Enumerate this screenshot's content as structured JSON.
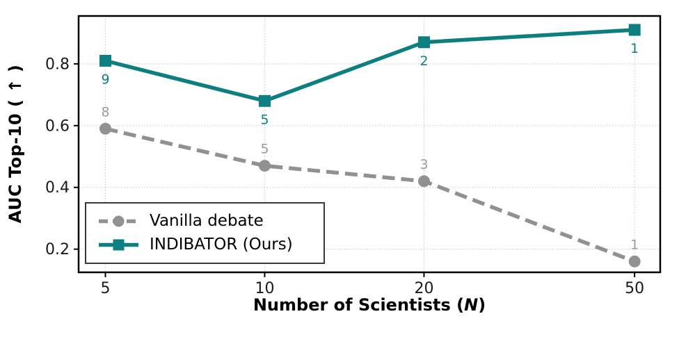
{
  "figure": {
    "background": "#ffffff",
    "frame_color": "#000000",
    "grid_color": "#cccccc",
    "tick_label_color": "#1a1a1a"
  },
  "chart_data": {
    "type": "line",
    "xscale": "log",
    "grid": "dotted",
    "legend_position": "lower-left",
    "ylabel": "AUC Top-10 ( ↑ )",
    "xlabel_prefix": "Number of Scientists (",
    "xlabel_var": "N",
    "xlabel_suffix": ")",
    "x": [
      5,
      10,
      20,
      50
    ],
    "xtick_labels": [
      "5",
      "10",
      "20",
      "50"
    ],
    "yticks": [
      0.2,
      0.4,
      0.6,
      0.8
    ],
    "ytick_labels": [
      "0.2",
      "0.4",
      "0.6",
      "0.8"
    ],
    "xlim": [
      4.45,
      55.9
    ],
    "ylim": [
      0.125,
      0.955
    ],
    "series": [
      {
        "name": "Vanilla debate",
        "color": "#919191",
        "line_style": "dashed",
        "marker": "circle",
        "values": [
          0.59,
          0.47,
          0.42,
          0.16
        ],
        "annotations": [
          "8",
          "5",
          "3",
          "1"
        ],
        "annotation_side": "above",
        "annotation_color": "#9b9b9b"
      },
      {
        "name": "INDIBATOR (Ours)",
        "color": "#0e7f80",
        "line_style": "solid",
        "marker": "square",
        "values": [
          0.81,
          0.68,
          0.87,
          0.91
        ],
        "annotations": [
          "9",
          "5",
          "2",
          "1"
        ],
        "annotation_side": "below",
        "annotation_color": "#0e7f80"
      }
    ]
  }
}
